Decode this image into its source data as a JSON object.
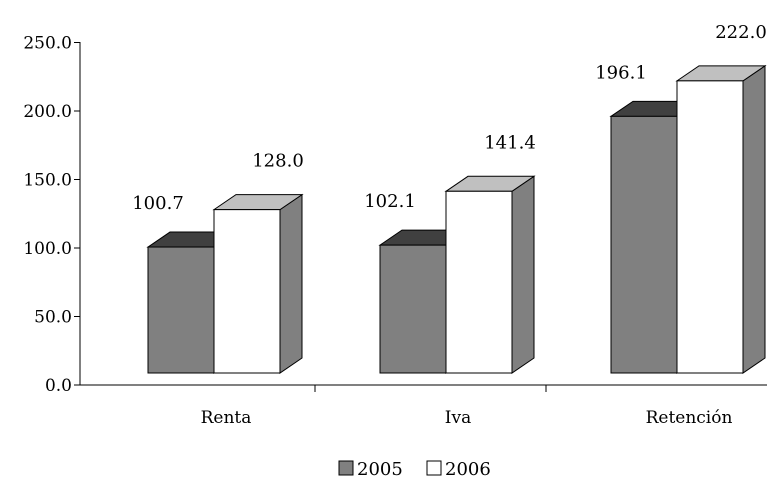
{
  "chart_data": {
    "type": "bar",
    "style": "3d-clustered",
    "categories": [
      "Renta",
      "Iva",
      "Retención"
    ],
    "series": [
      {
        "name": "2005",
        "values": [
          100.7,
          102.1,
          196.1
        ],
        "color": "#808080"
      },
      {
        "name": "2006",
        "values": [
          128.0,
          141.4,
          222.0
        ],
        "color": "#ffffff"
      }
    ],
    "data_labels": [
      [
        "100.7",
        "102.1",
        "196.1"
      ],
      [
        "128.0",
        "141.4",
        "222.0"
      ]
    ],
    "y_ticks": [
      "0.0",
      "50.0",
      "100.0",
      "150.0",
      "200.0",
      "250.0"
    ],
    "ylim": [
      0,
      250
    ],
    "title": "",
    "xlabel": "",
    "ylabel": "",
    "grid": false,
    "legend_position": "bottom",
    "colors": {
      "side": "#808080",
      "top_2005": "#404040",
      "top_2006": "#c0c0c0",
      "edge": "#000000"
    }
  }
}
